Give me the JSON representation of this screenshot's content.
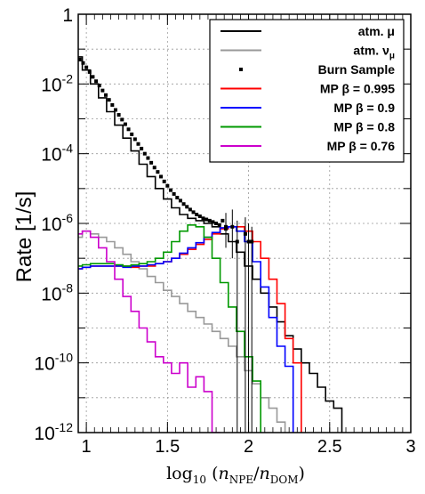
{
  "chart_data": {
    "type": "line",
    "style": "step histogram",
    "ylabel": "Rate [1/s]",
    "xlabel_parts": {
      "prefix": "log",
      "sub": "10",
      "open": " (",
      "n1": "n",
      "n1_sub": "NPE",
      "slash": "/",
      "n2": "n",
      "n2_sub": "DOM",
      "close": ")"
    },
    "xlim": [
      0.95,
      3.0
    ],
    "ylim": [
      1e-12,
      1
    ],
    "yscale": "log",
    "grid": true,
    "legend_position": "top-right",
    "x_ticks": [
      {
        "value": 1,
        "label": "1"
      },
      {
        "value": 1.5,
        "label": "1.5"
      },
      {
        "value": 2,
        "label": "2"
      },
      {
        "value": 2.5,
        "label": "2.5"
      },
      {
        "value": 3,
        "label": "3"
      }
    ],
    "y_ticks": [
      {
        "value": 1,
        "base": "1",
        "exp": ""
      },
      {
        "value": 0.01,
        "base": "10",
        "exp": "-2"
      },
      {
        "value": 0.0001,
        "base": "10",
        "exp": "-4"
      },
      {
        "value": 1e-06,
        "base": "10",
        "exp": "-6"
      },
      {
        "value": 1e-08,
        "base": "10",
        "exp": "-8"
      },
      {
        "value": 1e-10,
        "base": "10",
        "exp": "-10"
      },
      {
        "value": 1e-12,
        "base": "10",
        "exp": "-12"
      }
    ],
    "legend": [
      {
        "label": "atm. μ",
        "kind": "line",
        "color": "#000000"
      },
      {
        "label": "atm. ν",
        "label_sub": "μ",
        "kind": "line",
        "color": "#999999"
      },
      {
        "label": "Burn Sample",
        "kind": "marker",
        "color": "#000000"
      },
      {
        "label": "MP β = 0.995",
        "kind": "line",
        "color": "#ff0000"
      },
      {
        "label": "MP β = 0.9",
        "kind": "line",
        "color": "#0000ff"
      },
      {
        "label": "MP β = 0.8",
        "kind": "line",
        "color": "#009900"
      },
      {
        "label": "MP β = 0.76",
        "kind": "line",
        "color": "#cc00cc"
      }
    ],
    "series": [
      {
        "label": "atm. μ",
        "color": "#000000",
        "x": [
          0.95,
          1.0,
          1.05,
          1.1,
          1.15,
          1.2,
          1.25,
          1.3,
          1.35,
          1.4,
          1.45,
          1.5,
          1.55,
          1.6,
          1.65,
          1.7,
          1.75,
          1.8,
          1.85,
          1.9,
          1.95,
          2.0,
          2.05,
          2.1,
          2.15,
          2.2,
          2.25,
          2.3,
          2.35,
          2.4,
          2.45,
          2.5,
          2.55
        ],
        "y": [
          0.06,
          0.025,
          0.01,
          0.004,
          0.0016,
          0.00066,
          0.00028,
          0.00012,
          5e-05,
          2.2e-05,
          1e-05,
          5e-06,
          2.8e-06,
          1.8e-06,
          1.4e-06,
          1.2e-06,
          1e-06,
          8e-07,
          5e-07,
          3e-07,
          1.5e-07,
          6e-08,
          2.5e-08,
          1e-08,
          4e-09,
          1.5e-09,
          6e-10,
          2.5e-10,
          1e-10,
          5e-11,
          2e-11,
          8e-12,
          5e-12
        ]
      },
      {
        "label": "atm. νμ",
        "color": "#999999",
        "x": [
          0.95,
          1.0,
          1.05,
          1.1,
          1.15,
          1.2,
          1.25,
          1.3,
          1.35,
          1.4,
          1.45,
          1.5,
          1.55,
          1.6,
          1.65,
          1.7,
          1.75,
          1.8,
          1.85,
          1.9,
          1.95,
          2.0,
          2.05,
          2.1,
          2.15,
          2.2
        ],
        "y": [
          4e-07,
          6e-07,
          5e-07,
          4e-07,
          3e-07,
          2e-07,
          1.3e-07,
          8e-08,
          5e-08,
          3e-08,
          2e-08,
          1.2e-08,
          8e-09,
          5e-09,
          3e-09,
          2e-09,
          1.3e-09,
          8e-10,
          5e-10,
          3e-10,
          1.5e-10,
          6e-11,
          2.5e-11,
          1e-11,
          5e-12,
          2e-12
        ]
      },
      {
        "label": "MP β = 0.995",
        "color": "#ff0000",
        "x": [
          0.95,
          1.0,
          1.05,
          1.1,
          1.15,
          1.2,
          1.25,
          1.3,
          1.35,
          1.4,
          1.45,
          1.5,
          1.55,
          1.6,
          1.65,
          1.7,
          1.75,
          1.8,
          1.85,
          1.9,
          1.95,
          2.0,
          2.05,
          2.1,
          2.15,
          2.2,
          2.25,
          2.3
        ],
        "y": [
          5e-08,
          5.5e-08,
          6e-08,
          6e-08,
          6e-08,
          6e-08,
          6e-08,
          5.5e-08,
          6e-08,
          6e-08,
          7e-08,
          8e-08,
          1e-07,
          1.3e-07,
          1.8e-07,
          2.5e-07,
          3.5e-07,
          5e-07,
          7e-07,
          8e-07,
          8e-07,
          6e-07,
          3e-07,
          1e-07,
          2.5e-08,
          5e-09,
          5e-10,
          1e-10
        ]
      },
      {
        "label": "MP β = 0.9",
        "color": "#0000ff",
        "x": [
          0.95,
          1.0,
          1.05,
          1.1,
          1.15,
          1.2,
          1.25,
          1.3,
          1.35,
          1.4,
          1.45,
          1.5,
          1.55,
          1.6,
          1.65,
          1.7,
          1.75,
          1.8,
          1.85,
          1.9,
          1.95,
          2.0,
          2.05,
          2.1,
          2.15,
          2.2,
          2.25
        ],
        "y": [
          5e-08,
          5.5e-08,
          6e-08,
          6e-08,
          6e-08,
          6e-08,
          5.5e-08,
          6e-08,
          6e-08,
          6.5e-08,
          7e-08,
          8e-08,
          1e-07,
          1.4e-07,
          2e-07,
          2.8e-07,
          4e-07,
          5.5e-07,
          7.5e-07,
          8e-07,
          6e-07,
          3e-07,
          8e-08,
          1.5e-08,
          2e-09,
          3e-10,
          8e-11
        ]
      },
      {
        "label": "MP β = 0.8",
        "color": "#009900",
        "x": [
          0.95,
          1.0,
          1.05,
          1.1,
          1.15,
          1.2,
          1.25,
          1.3,
          1.35,
          1.4,
          1.45,
          1.5,
          1.55,
          1.6,
          1.65,
          1.7,
          1.75,
          1.8,
          1.85,
          1.9,
          1.95,
          2.0,
          2.05
        ],
        "y": [
          6e-08,
          6.5e-08,
          7e-08,
          7e-08,
          7e-08,
          6.5e-08,
          6e-08,
          6.5e-08,
          7e-08,
          8e-08,
          1e-07,
          1.5e-07,
          3e-07,
          6e-07,
          9e-07,
          8e-07,
          4e-07,
          1e-07,
          2e-08,
          4e-09,
          8e-10,
          1.5e-10,
          3e-11
        ]
      },
      {
        "label": "MP β = 0.76",
        "color": "#cc00cc",
        "x": [
          0.95,
          1.0,
          1.05,
          1.1,
          1.15,
          1.2,
          1.25,
          1.3,
          1.35,
          1.4,
          1.45,
          1.5,
          1.55,
          1.6,
          1.65,
          1.7,
          1.75,
          1.8
        ],
        "y": [
          5e-07,
          6e-07,
          4e-07,
          2e-07,
          8e-08,
          2.5e-08,
          8e-09,
          3e-09,
          1e-09,
          4e-10,
          1.5e-10,
          1e-10,
          5e-11,
          1e-10,
          2e-11,
          4e-11,
          1.5e-11,
          1e-12
        ]
      }
    ],
    "burn_sample": {
      "label": "Burn Sample",
      "x": [
        0.96,
        0.98,
        1.0,
        1.02,
        1.04,
        1.06,
        1.08,
        1.1,
        1.12,
        1.14,
        1.16,
        1.18,
        1.2,
        1.22,
        1.24,
        1.26,
        1.28,
        1.3,
        1.32,
        1.34,
        1.36,
        1.38,
        1.4,
        1.42,
        1.44,
        1.46,
        1.48,
        1.5,
        1.52,
        1.54,
        1.56,
        1.58,
        1.6,
        1.62,
        1.64,
        1.66,
        1.68,
        1.7,
        1.72,
        1.74,
        1.76,
        1.78,
        1.8,
        1.82,
        1.84,
        1.86
      ],
      "y": [
        0.05,
        0.04,
        0.03,
        0.022,
        0.016,
        0.012,
        0.009,
        0.0065,
        0.0048,
        0.0035,
        0.0025,
        0.0018,
        0.0013,
        0.00095,
        0.0007,
        0.0005,
        0.00036,
        0.00026,
        0.00019,
        0.00014,
        0.0001,
        7.5e-05,
        5.5e-05,
        4e-05,
        3e-05,
        2.2e-05,
        1.6e-05,
        1.2e-05,
        9e-06,
        7e-06,
        5.5e-06,
        4.5e-06,
        3.6e-06,
        3e-06,
        2.5e-06,
        2.1e-06,
        1.8e-06,
        1.6e-06,
        1.4e-06,
        1.3e-06,
        1.2e-06,
        1.1e-06,
        1e-06,
        9e-07,
        1.2e-06,
        7e-07
      ],
      "error_points": [
        {
          "x": 1.86,
          "y": 8e-07,
          "lo": 2e-07,
          "hi": 2e-06
        },
        {
          "x": 1.9,
          "y": 8e-07,
          "lo": 1e-07,
          "hi": 2.5e-06
        },
        {
          "x": 1.93,
          "y": 3e-07,
          "lo": 1e-12,
          "hi": 1.2e-06
        },
        {
          "x": 1.98,
          "y": 5e-07,
          "lo": 1e-12,
          "hi": 1.5e-06
        },
        {
          "x": 2.0,
          "y": 3e-07,
          "lo": 1e-12,
          "hi": 1e-06
        },
        {
          "x": 2.02,
          "y": 3e-07,
          "lo": 1e-12,
          "hi": 8e-07
        }
      ]
    }
  }
}
